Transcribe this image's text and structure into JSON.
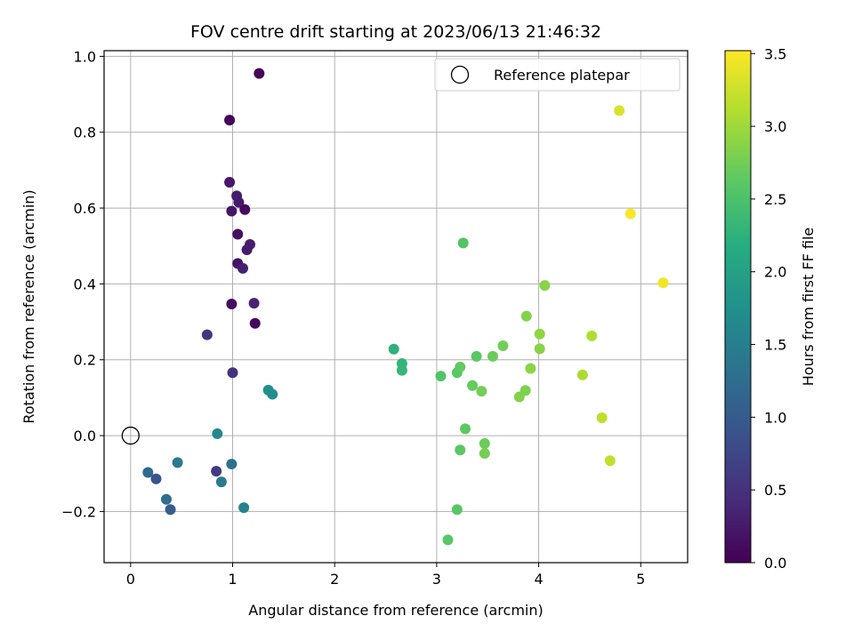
{
  "chart_data": {
    "type": "scatter",
    "title": "FOV centre drift starting at 2023/06/13 21:46:32",
    "xlabel": "Angular distance from reference (arcmin)",
    "ylabel": "Rotation from reference (arcmin)",
    "xlim": [
      -0.26,
      5.46
    ],
    "ylim": [
      -0.335,
      1.015
    ],
    "xticks": [
      0,
      1,
      2,
      3,
      4,
      5
    ],
    "xtick_labels": [
      "0",
      "1",
      "2",
      "3",
      "4",
      "5"
    ],
    "yticks": [
      -0.2,
      0.0,
      0.2,
      0.4,
      0.6,
      0.8,
      1.0
    ],
    "ytick_labels": [
      "−0.2",
      "0.0",
      "0.2",
      "0.4",
      "0.6",
      "0.8",
      "1.0"
    ],
    "grid": true,
    "legend": {
      "placement": "top-right",
      "entries": [
        "Reference platepar"
      ]
    },
    "reference_point": {
      "x": 0.0,
      "y": 0.0,
      "label": "Reference platepar"
    },
    "colorbar": {
      "label": "Hours from first FF file",
      "colormap": "viridis",
      "range": [
        0.0,
        3.52
      ],
      "ticks": [
        0.0,
        0.5,
        1.0,
        1.5,
        2.0,
        2.5,
        3.0,
        3.5
      ],
      "tick_labels": [
        "0.0",
        "0.5",
        "1.0",
        "1.5",
        "2.0",
        "2.5",
        "3.0",
        "3.5"
      ]
    },
    "points": [
      {
        "x": 1.26,
        "y": 0.955,
        "c": 0.02
      },
      {
        "x": 0.97,
        "y": 0.832,
        "c": 0.03
      },
      {
        "x": 0.97,
        "y": 0.668,
        "c": 0.22
      },
      {
        "x": 1.04,
        "y": 0.632,
        "c": 0.27
      },
      {
        "x": 1.06,
        "y": 0.615,
        "c": 0.25
      },
      {
        "x": 0.99,
        "y": 0.592,
        "c": 0.2
      },
      {
        "x": 1.12,
        "y": 0.596,
        "c": 0.1
      },
      {
        "x": 1.05,
        "y": 0.531,
        "c": 0.14
      },
      {
        "x": 1.17,
        "y": 0.504,
        "c": 0.3
      },
      {
        "x": 1.14,
        "y": 0.49,
        "c": 0.28
      },
      {
        "x": 1.05,
        "y": 0.454,
        "c": 0.18
      },
      {
        "x": 1.1,
        "y": 0.441,
        "c": 0.32
      },
      {
        "x": 0.99,
        "y": 0.347,
        "c": 0.1
      },
      {
        "x": 1.21,
        "y": 0.349,
        "c": 0.35
      },
      {
        "x": 1.22,
        "y": 0.296,
        "c": 0.08
      },
      {
        "x": 0.75,
        "y": 0.266,
        "c": 0.55
      },
      {
        "x": 1.0,
        "y": 0.166,
        "c": 0.5
      },
      {
        "x": 1.35,
        "y": 0.12,
        "c": 1.75
      },
      {
        "x": 1.39,
        "y": 0.109,
        "c": 1.72
      },
      {
        "x": 0.85,
        "y": 0.005,
        "c": 1.62
      },
      {
        "x": 0.17,
        "y": -0.097,
        "c": 1.2
      },
      {
        "x": 0.25,
        "y": -0.114,
        "c": 0.92
      },
      {
        "x": 0.46,
        "y": -0.071,
        "c": 1.45
      },
      {
        "x": 0.35,
        "y": -0.168,
        "c": 1.25
      },
      {
        "x": 0.39,
        "y": -0.195,
        "c": 1.05
      },
      {
        "x": 0.84,
        "y": -0.094,
        "c": 0.6
      },
      {
        "x": 0.99,
        "y": -0.075,
        "c": 1.3
      },
      {
        "x": 0.89,
        "y": -0.122,
        "c": 1.45
      },
      {
        "x": 1.11,
        "y": -0.19,
        "c": 1.55
      },
      {
        "x": 2.58,
        "y": 0.228,
        "c": 2.25
      },
      {
        "x": 2.66,
        "y": 0.19,
        "c": 2.3
      },
      {
        "x": 2.66,
        "y": 0.172,
        "c": 2.32
      },
      {
        "x": 3.04,
        "y": 0.157,
        "c": 2.55
      },
      {
        "x": 3.2,
        "y": 0.166,
        "c": 2.6
      },
      {
        "x": 3.23,
        "y": 0.181,
        "c": 2.65
      },
      {
        "x": 3.26,
        "y": 0.508,
        "c": 2.55
      },
      {
        "x": 3.39,
        "y": 0.209,
        "c": 2.6
      },
      {
        "x": 3.35,
        "y": 0.132,
        "c": 2.68
      },
      {
        "x": 3.44,
        "y": 0.117,
        "c": 2.75
      },
      {
        "x": 3.55,
        "y": 0.209,
        "c": 2.7
      },
      {
        "x": 3.65,
        "y": 0.237,
        "c": 2.75
      },
      {
        "x": 3.28,
        "y": 0.018,
        "c": 2.62
      },
      {
        "x": 3.23,
        "y": -0.038,
        "c": 2.6
      },
      {
        "x": 3.2,
        "y": -0.195,
        "c": 2.6
      },
      {
        "x": 3.11,
        "y": -0.275,
        "c": 2.6
      },
      {
        "x": 3.47,
        "y": -0.021,
        "c": 2.72
      },
      {
        "x": 3.47,
        "y": -0.047,
        "c": 2.78
      },
      {
        "x": 3.81,
        "y": 0.102,
        "c": 2.85
      },
      {
        "x": 3.87,
        "y": 0.119,
        "c": 2.82
      },
      {
        "x": 3.92,
        "y": 0.177,
        "c": 2.9
      },
      {
        "x": 3.88,
        "y": 0.315,
        "c": 2.85
      },
      {
        "x": 4.01,
        "y": 0.268,
        "c": 2.92
      },
      {
        "x": 4.01,
        "y": 0.229,
        "c": 2.88
      },
      {
        "x": 4.06,
        "y": 0.396,
        "c": 2.88
      },
      {
        "x": 4.43,
        "y": 0.16,
        "c": 3.08
      },
      {
        "x": 4.52,
        "y": 0.263,
        "c": 3.1
      },
      {
        "x": 4.62,
        "y": 0.047,
        "c": 3.18
      },
      {
        "x": 4.7,
        "y": -0.066,
        "c": 3.2
      },
      {
        "x": 4.79,
        "y": 0.857,
        "c": 3.32
      },
      {
        "x": 4.9,
        "y": 0.585,
        "c": 3.5
      },
      {
        "x": 5.22,
        "y": 0.403,
        "c": 3.45
      }
    ]
  }
}
